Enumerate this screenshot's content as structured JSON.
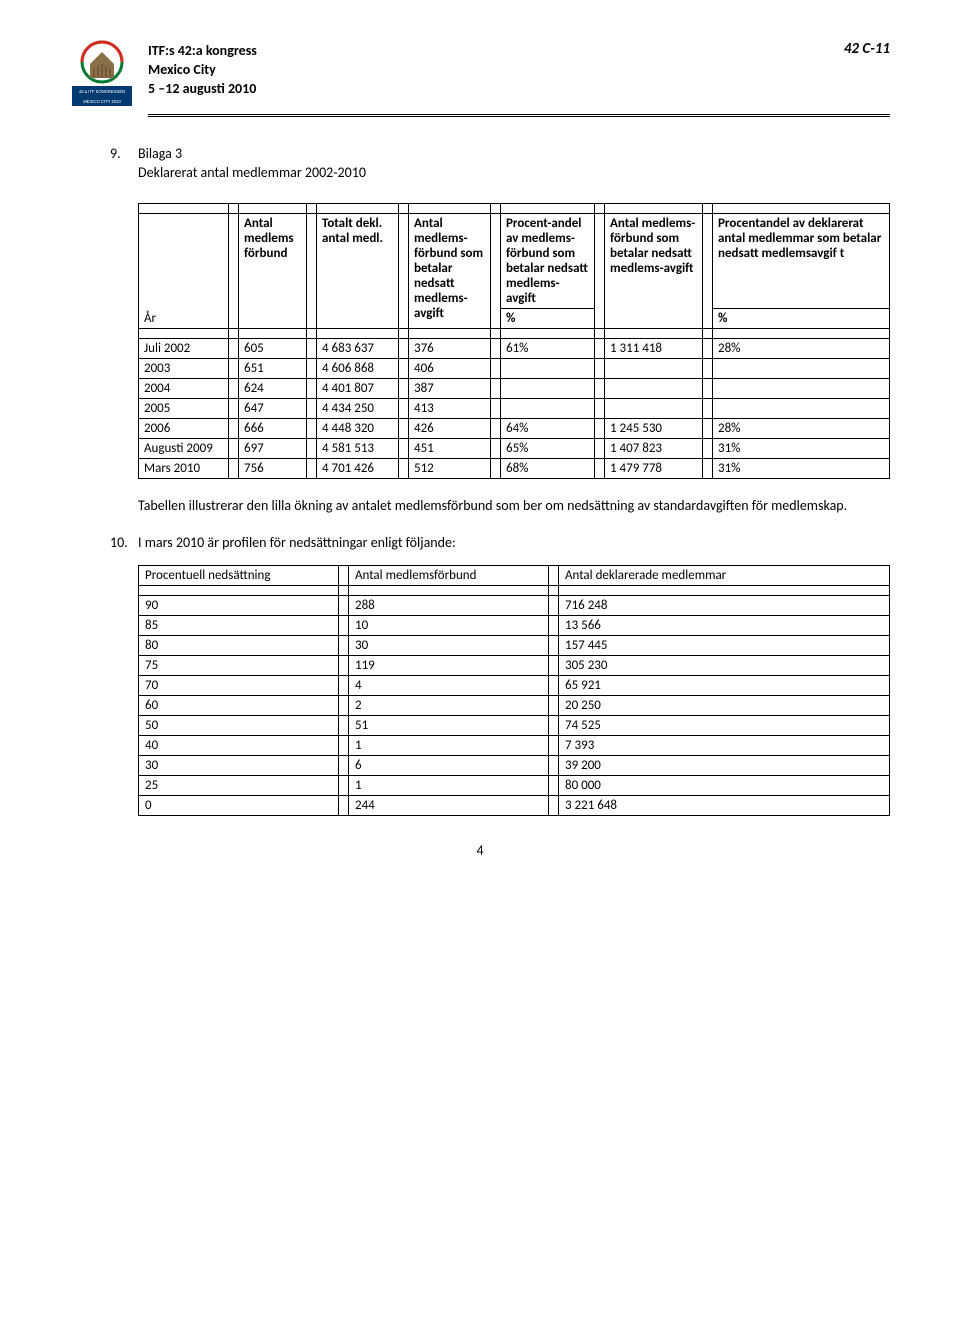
{
  "header": {
    "line1": "ITF:s 42:a kongress",
    "line2": "Mexico City",
    "line3": "5 –12 augusti 2010",
    "doc_id": "42 C-11",
    "logo_caption1": "42:a ITF KONGRESSEN",
    "logo_caption2": "MEXICO CITY 2010"
  },
  "section9": {
    "num": "9.",
    "title": "Bilaga 3",
    "subtitle": "Deklarerat antal medlemmar 2002-2010"
  },
  "table1": {
    "col_year": "År",
    "col1": "Antal medlems förbund",
    "col2": "Totalt dekl. antal medl.",
    "col3": "Antal medlems-förbund som betalar nedsatt medlems-avgift",
    "col4": "Procent-andel av medlems-förbund som betalar nedsatt medlems-avgift",
    "col5": "Antal medlems-förbund som betalar nedsatt medlems-avgift",
    "col6": "Procentandel av deklarerat antal medlemmar som betalar nedsatt medlemsavgift",
    "pct": "%",
    "rows": [
      {
        "year": "Juli 2002",
        "c1": "605",
        "c2": "4 683 637",
        "c3": "376",
        "c4": "61%",
        "c5": "1 311 418",
        "c6": "28%"
      },
      {
        "year": "2003",
        "c1": "651",
        "c2": "4 606 868",
        "c3": "406",
        "c4": "",
        "c5": "",
        "c6": ""
      },
      {
        "year": "2004",
        "c1": "624",
        "c2": "4 401 807",
        "c3": "387",
        "c4": "",
        "c5": "",
        "c6": ""
      },
      {
        "year": "2005",
        "c1": "647",
        "c2": "4 434 250",
        "c3": "413",
        "c4": "",
        "c5": "",
        "c6": ""
      },
      {
        "year": "2006",
        "c1": "666",
        "c2": "4 448 320",
        "c3": "426",
        "c4": "64%",
        "c5": "1 245 530",
        "c6": "28%"
      },
      {
        "year": "Augusti 2009",
        "c1": "697",
        "c2": "4 581 513",
        "c3": "451",
        "c4": "65%",
        "c5": "1 407 823",
        "c6": "31%"
      },
      {
        "year": "Mars 2010",
        "c1": "756",
        "c2": "4 701 426",
        "c3": "512",
        "c4": "68%",
        "c5": "1 479 778",
        "c6": "31%"
      }
    ]
  },
  "para1": "Tabellen illustrerar den lilla ökning av antalet medlemsförbund som ber om nedsättning av standardavgiften för medlemskap.",
  "section10": {
    "num": "10.",
    "text": "I mars 2010 är profilen för nedsättningar enligt följande:"
  },
  "table2": {
    "col1": "Procentuell nedsättning",
    "col2": "Antal medlemsförbund",
    "col3": "Antal deklarerade medlemmar",
    "rows": [
      {
        "c1": "90",
        "c2": "288",
        "c3": "716 248"
      },
      {
        "c1": "85",
        "c2": "10",
        "c3": "13 566"
      },
      {
        "c1": "80",
        "c2": "30",
        "c3": "157 445"
      },
      {
        "c1": "75",
        "c2": "119",
        "c3": "305 230"
      },
      {
        "c1": "70",
        "c2": "4",
        "c3": "65 921"
      },
      {
        "c1": "60",
        "c2": "2",
        "c3": "20 250"
      },
      {
        "c1": "50",
        "c2": "51",
        "c3": "74 525"
      },
      {
        "c1": "40",
        "c2": "1",
        "c3": "7 393"
      },
      {
        "c1": "30",
        "c2": "6",
        "c3": "39 200"
      },
      {
        "c1": "25",
        "c2": "1",
        "c3": "80 000"
      },
      {
        "c1": "0",
        "c2": "244",
        "c3": "3 221 648"
      }
    ]
  },
  "page_number": "4"
}
